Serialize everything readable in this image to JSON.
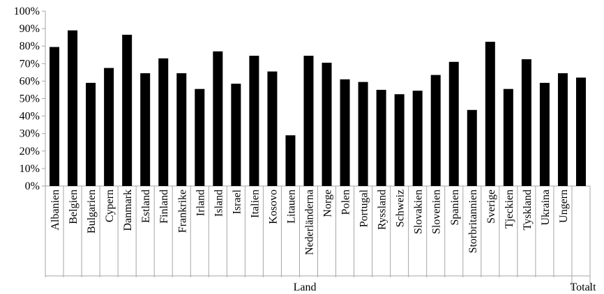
{
  "chart_data": {
    "type": "bar",
    "categories": [
      "Albanien",
      "Belgien",
      "Bulgarien",
      "Cypern",
      "Danmark",
      "Estland",
      "Finland",
      "Frankrike",
      "Irland",
      "Island",
      "Israel",
      "Italien",
      "Kosovo",
      "Litauen",
      "Nederländerna",
      "Norge",
      "Polen",
      "Portugal",
      "Ryssland",
      "Schweiz",
      "Slovakien",
      "Slovenien",
      "Spanien",
      "Storbritannien",
      "Sverige",
      "Tjeckien",
      "Tyskland",
      "Ukraina",
      "Ungern",
      "Totalt"
    ],
    "values": [
      79.5,
      89,
      59,
      67.5,
      86.5,
      64.5,
      73,
      64.5,
      55.5,
      77,
      58.5,
      74.5,
      65.5,
      29,
      74.5,
      70.5,
      61,
      59.5,
      55,
      52.5,
      54.5,
      63.5,
      71,
      43.5,
      82.5,
      55.5,
      72.5,
      59,
      64.5,
      62
    ],
    "ylim": [
      0,
      100
    ],
    "ytick_labels": [
      "0%",
      "10%",
      "20%",
      "30%",
      "40%",
      "50%",
      "60%",
      "70%",
      "80%",
      "90%",
      "100%"
    ],
    "group_labels": {
      "land": "Land",
      "total": "Totalt"
    },
    "grid": false,
    "legend": "none",
    "bar_color": "#000000",
    "axis_color": "#a6a6a6"
  }
}
